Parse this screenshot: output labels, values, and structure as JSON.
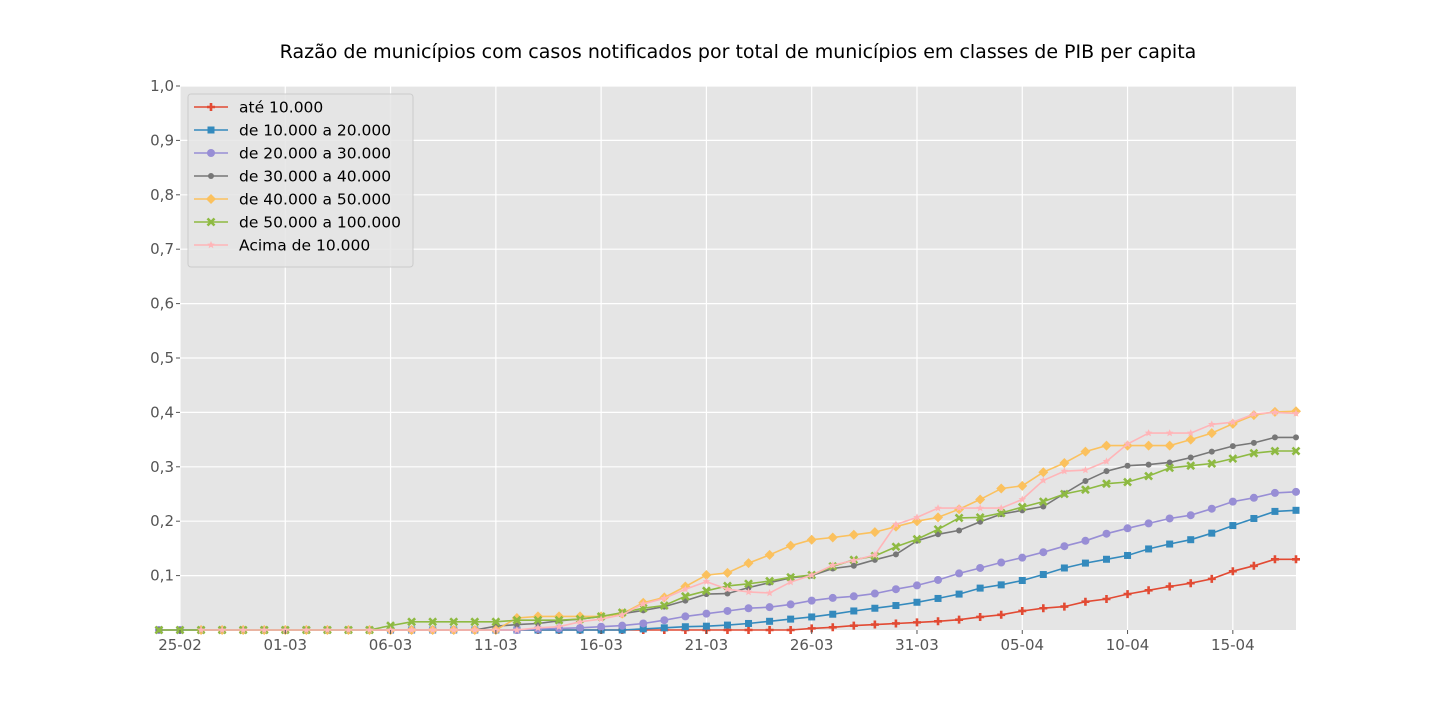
{
  "chart_data": {
    "type": "line",
    "title": "Razão de municípios com casos notificados por total de municípios em classes de PIB per capita",
    "xlabel": "",
    "ylabel": "",
    "x_start": "2020-02-25",
    "x_end": "2020-04-18",
    "x_tick_labels": [
      "25-02",
      "01-03",
      "06-03",
      "11-03",
      "16-03",
      "21-03",
      "26-03",
      "31-03",
      "05-04",
      "10-04",
      "15-04"
    ],
    "y_tick_labels": [
      "1,0",
      "0,9",
      "0,8",
      "0,7",
      "0,6",
      "0,5",
      "0,4",
      "0,3",
      "0,2",
      "0,1"
    ],
    "ylim": [
      0.0,
      1.0
    ],
    "grid": true,
    "legend_position": "upper-left",
    "series": [
      {
        "name": "até 10.000",
        "color": "#E24A33",
        "marker": "plus",
        "values": [
          0,
          0,
          0,
          0,
          0,
          0,
          0,
          0,
          0,
          0,
          0,
          0,
          0,
          0,
          0,
          0,
          0,
          0,
          0,
          0,
          0,
          0,
          0,
          0,
          0,
          0,
          0,
          0,
          0.003,
          0.005,
          0.008,
          0.01,
          0.012,
          0.014,
          0.016,
          0.019,
          0.024,
          0.028,
          0.035,
          0.04,
          0.043,
          0.052,
          0.057,
          0.066,
          0.073,
          0.08,
          0.086,
          0.094,
          0.108,
          0.118,
          0.13,
          0.13
        ]
      },
      {
        "name": "de 10.000 a 20.000",
        "color": "#348ABD",
        "marker": "square",
        "values": [
          0,
          0,
          0,
          0,
          0,
          0,
          0,
          0,
          0,
          0,
          0,
          0,
          0,
          0,
          0,
          0,
          0,
          0,
          0,
          0,
          0,
          0.002,
          0.004,
          0.006,
          0.007,
          0.009,
          0.012,
          0.016,
          0.02,
          0.024,
          0.029,
          0.035,
          0.04,
          0.045,
          0.051,
          0.058,
          0.066,
          0.077,
          0.083,
          0.091,
          0.102,
          0.114,
          0.123,
          0.13,
          0.137,
          0.149,
          0.158,
          0.166,
          0.178,
          0.192,
          0.205,
          0.218,
          0.22
        ]
      },
      {
        "name": "de 20.000 a 30.000",
        "color": "#988ED5",
        "marker": "circle",
        "values": [
          0,
          0,
          0,
          0,
          0,
          0,
          0,
          0,
          0,
          0,
          0,
          0,
          0,
          0,
          0,
          0,
          0,
          0,
          0.002,
          0.003,
          0.004,
          0.006,
          0.008,
          0.012,
          0.018,
          0.025,
          0.03,
          0.035,
          0.04,
          0.042,
          0.047,
          0.054,
          0.059,
          0.062,
          0.067,
          0.075,
          0.082,
          0.092,
          0.104,
          0.114,
          0.124,
          0.133,
          0.143,
          0.154,
          0.164,
          0.177,
          0.187,
          0.196,
          0.205,
          0.211,
          0.223,
          0.236,
          0.243,
          0.252,
          0.254
        ]
      },
      {
        "name": "de 30.000 a 40.000",
        "color": "#777777",
        "marker": "dot",
        "values": [
          0,
          0,
          0,
          0,
          0,
          0,
          0,
          0,
          0,
          0,
          0,
          0,
          0,
          0,
          0,
          0,
          0.007,
          0.01,
          0.012,
          0.017,
          0.02,
          0.025,
          0.03,
          0.036,
          0.043,
          0.054,
          0.066,
          0.067,
          0.078,
          0.087,
          0.096,
          0.1,
          0.113,
          0.118,
          0.129,
          0.139,
          0.164,
          0.176,
          0.183,
          0.199,
          0.213,
          0.22,
          0.227,
          0.251,
          0.274,
          0.292,
          0.302,
          0.304,
          0.308,
          0.317,
          0.328,
          0.338,
          0.344,
          0.354,
          0.354
        ]
      },
      {
        "name": "de 40.000 a 50.000",
        "color": "#FBC15E",
        "marker": "diamond",
        "values": [
          0,
          0,
          0,
          0,
          0,
          0,
          0,
          0,
          0,
          0,
          0,
          0,
          0,
          0,
          0,
          0.022,
          0.025,
          0.025,
          0.025,
          0.025,
          0.03,
          0.05,
          0.06,
          0.08,
          0.101,
          0.105,
          0.123,
          0.138,
          0.155,
          0.166,
          0.17,
          0.175,
          0.18,
          0.19,
          0.2,
          0.207,
          0.222,
          0.24,
          0.26,
          0.265,
          0.29,
          0.307,
          0.328,
          0.339,
          0.339,
          0.339,
          0.339,
          0.35,
          0.362,
          0.379,
          0.395,
          0.401,
          0.402
        ]
      },
      {
        "name": "de 50.000 a 100.000",
        "color": "#8EBA42",
        "marker": "x",
        "values": [
          0,
          0,
          0,
          0,
          0,
          0,
          0,
          0,
          0,
          0,
          0,
          0.008,
          0.015,
          0.015,
          0.015,
          0.015,
          0.015,
          0.018,
          0.018,
          0.018,
          0.02,
          0.025,
          0.032,
          0.04,
          0.045,
          0.062,
          0.072,
          0.081,
          0.085,
          0.09,
          0.097,
          0.101,
          0.117,
          0.129,
          0.136,
          0.153,
          0.167,
          0.185,
          0.206,
          0.207,
          0.215,
          0.226,
          0.236,
          0.25,
          0.258,
          0.269,
          0.272,
          0.283,
          0.298,
          0.302,
          0.306,
          0.315,
          0.325,
          0.329,
          0.329
        ]
      },
      {
        "name": "Acima de 10.000",
        "color": "#FFB5B8",
        "marker": "star",
        "values": [
          0,
          0,
          0,
          0,
          0,
          0,
          0,
          0,
          0,
          0,
          0,
          0,
          0,
          0,
          0,
          0,
          0.004,
          0.006,
          0.015,
          0.02,
          0.028,
          0.048,
          0.058,
          0.075,
          0.089,
          0.075,
          0.07,
          0.068,
          0.088,
          0.101,
          0.119,
          0.128,
          0.138,
          0.194,
          0.207,
          0.224,
          0.224,
          0.224,
          0.224,
          0.24,
          0.275,
          0.292,
          0.294,
          0.31,
          0.342,
          0.362,
          0.362,
          0.362,
          0.378,
          0.382,
          0.397,
          0.4,
          0.398
        ]
      }
    ]
  }
}
